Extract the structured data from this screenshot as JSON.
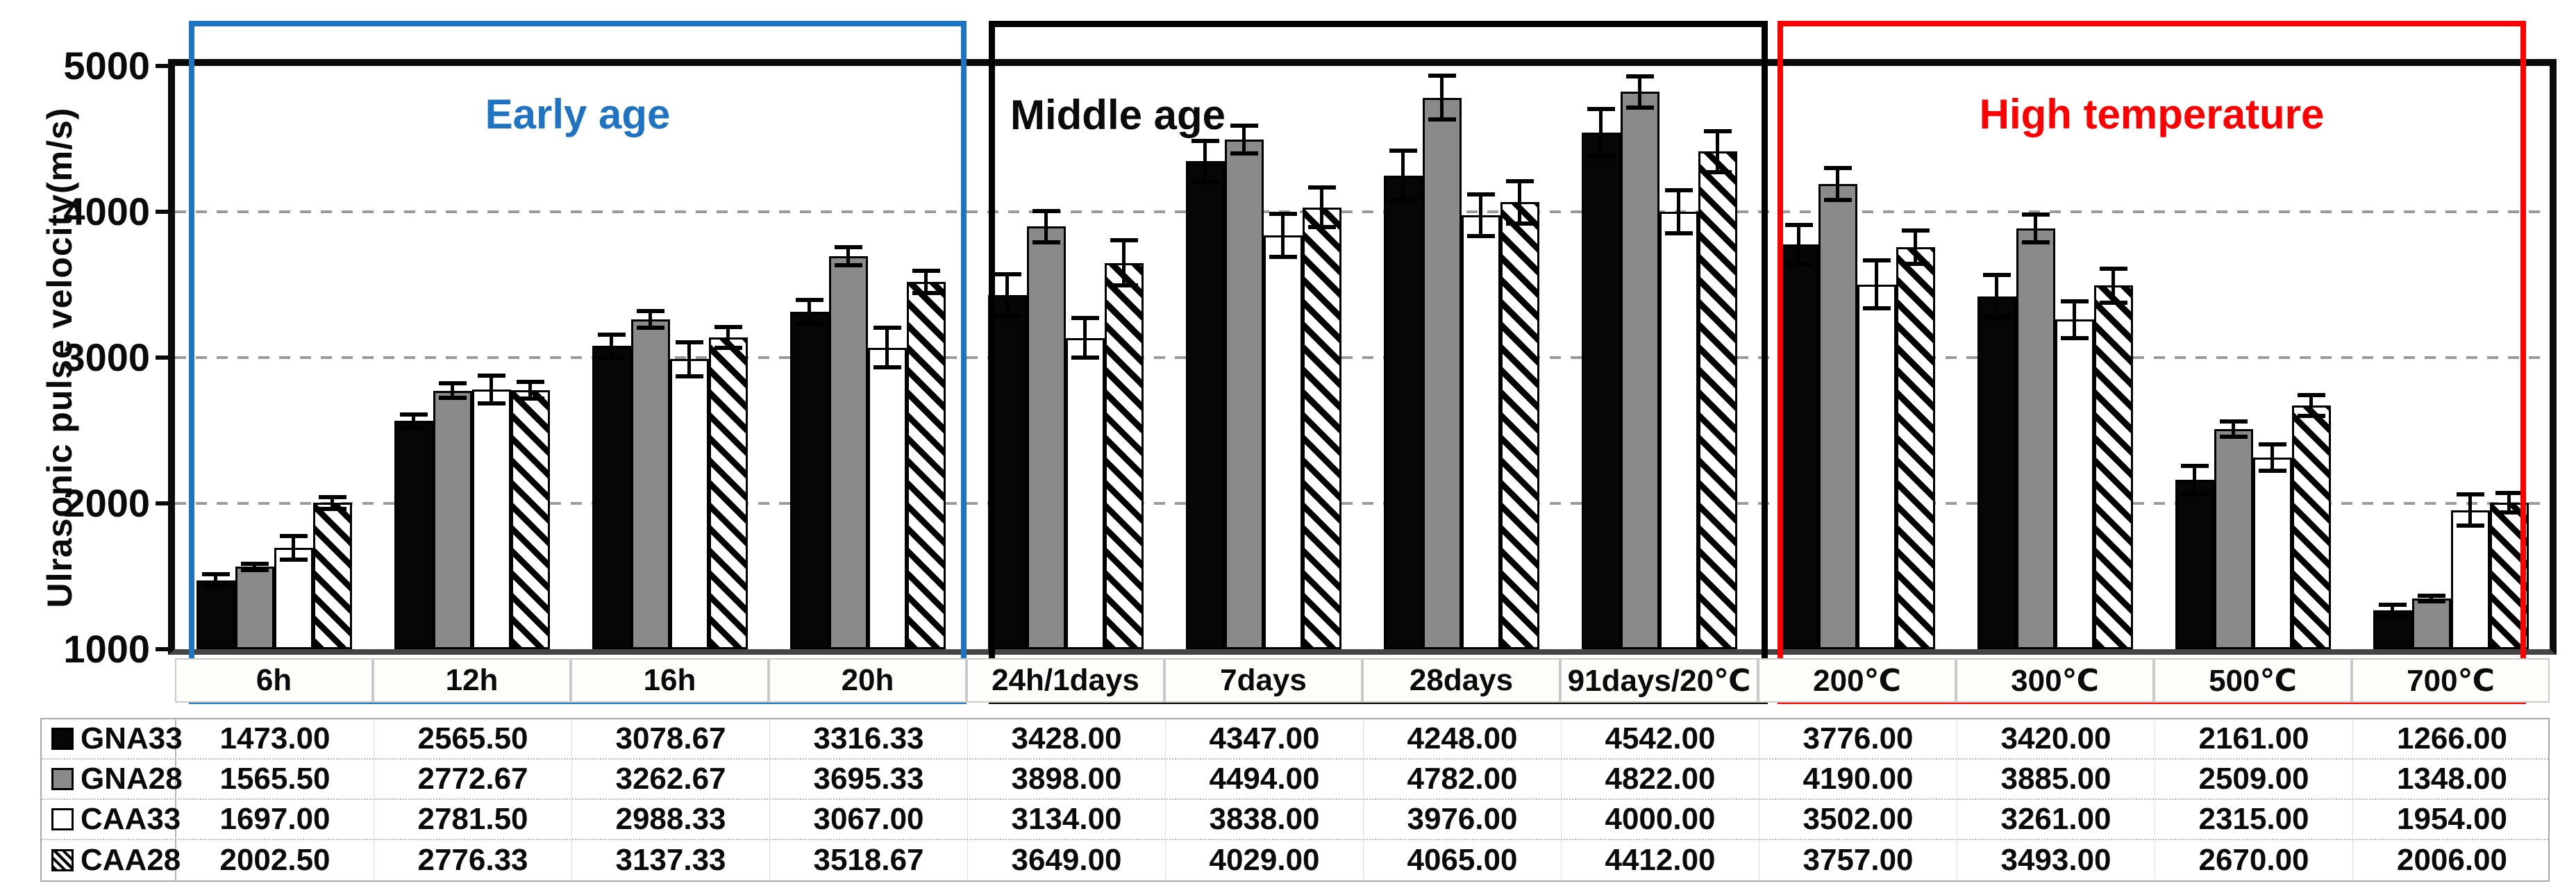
{
  "figure": {
    "background": "#ffffff"
  },
  "colors": {
    "early_age_box": "#1E73C3",
    "middle_age_box": "#000000",
    "high_temperature_box": "#FF0000",
    "gray_bar": "#8a8a8a",
    "axis_line": "#454545",
    "gridline": "#9b9b9b"
  },
  "chart_data": {
    "type": "bar",
    "title": "",
    "xlabel": "",
    "ylabel": "Ulrasonic pulse velocity(m/s)",
    "ylim": [
      1000,
      5000
    ],
    "yticks": [
      1000,
      2000,
      3000,
      4000,
      5000
    ],
    "gridlines": [
      2000,
      3000,
      4000
    ],
    "grid": "dashed-horizontal",
    "error_bars": true,
    "legend_position": "table-left-column",
    "value_format": "2dp",
    "categories": [
      "6h",
      "12h",
      "16h",
      "20h",
      "24h/1days",
      "7days",
      "28days",
      "91days/20℃",
      "200℃",
      "300℃",
      "500℃",
      "700℃"
    ],
    "series": [
      {
        "name": "GNA33",
        "fill": "black",
        "values": [
          1473.0,
          2565.5,
          3078.67,
          3316.33,
          3428.0,
          4347.0,
          4248.0,
          4542.0,
          3776.0,
          3420.0,
          2161.0,
          1266.0
        ],
        "errors": [
          55,
          60,
          95,
          95,
          160,
          155,
          185,
          175,
          150,
          160,
          110,
          55
        ]
      },
      {
        "name": "GNA28",
        "fill": "gray",
        "values": [
          1565.5,
          2772.67,
          3262.67,
          3695.33,
          3898.0,
          4494.0,
          4782.0,
          4822.0,
          4190.0,
          3885.0,
          2509.0,
          1348.0
        ],
        "errors": [
          35,
          65,
          70,
          75,
          120,
          110,
          165,
          120,
          125,
          110,
          65,
          35
        ]
      },
      {
        "name": "CAA33",
        "fill": "white",
        "values": [
          1697.0,
          2781.5,
          2988.33,
          3067.0,
          3134.0,
          3838.0,
          3976.0,
          4000.0,
          3502.0,
          3261.0,
          2315.0,
          1954.0
        ],
        "errors": [
          95,
          110,
          130,
          150,
          150,
          160,
          155,
          160,
          180,
          140,
          105,
          120
        ]
      },
      {
        "name": "CAA28",
        "fill": "hatch",
        "values": [
          2002.5,
          2776.33,
          3137.33,
          3518.67,
          3649.0,
          4029.0,
          4065.0,
          4412.0,
          3757.0,
          3493.0,
          2670.0,
          2006.0
        ],
        "errors": [
          55,
          70,
          85,
          90,
          170,
          150,
          160,
          155,
          130,
          130,
          85,
          80
        ]
      }
    ],
    "regions": [
      {
        "label": "Early age",
        "color": "#1E73C3",
        "categories": [
          0,
          3
        ],
        "label_align": "center"
      },
      {
        "label": "Middle age",
        "color": "#000000",
        "categories": [
          4,
          7
        ],
        "label_align": "left"
      },
      {
        "label": "High temperature",
        "color": "#FF0000",
        "categories": [
          8,
          11
        ],
        "label_align": "center"
      }
    ]
  }
}
